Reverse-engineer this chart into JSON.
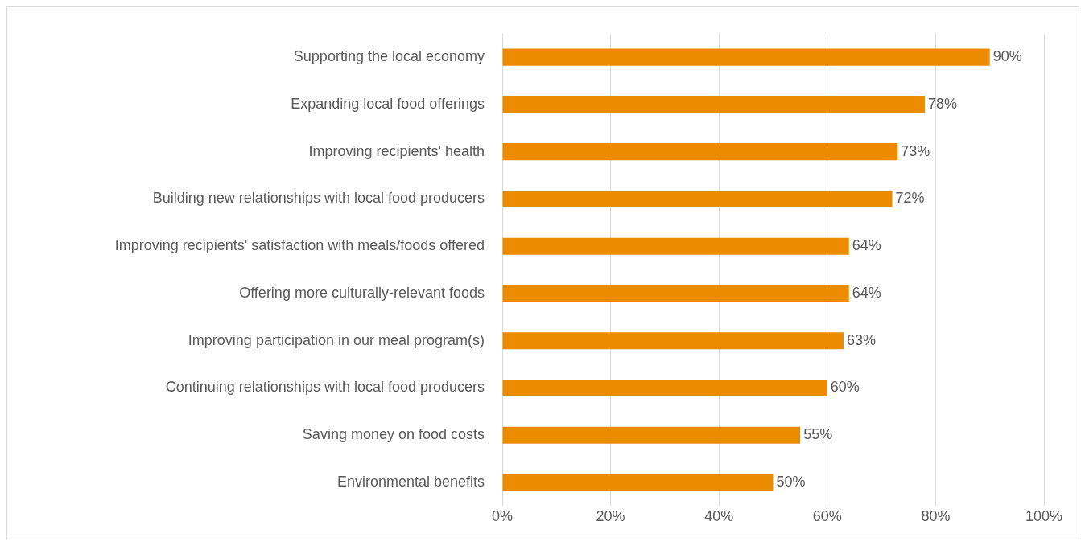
{
  "chart_data": {
    "type": "bar",
    "orientation": "horizontal",
    "categories": [
      "Supporting the local economy",
      "Expanding local food offerings",
      "Improving recipients' health",
      "Building new relationships with local food producers",
      "Improving recipients' satisfaction with meals/foods offered",
      "Offering more culturally-relevant foods",
      "Improving participation in our meal program(s)",
      "Continuing relationships with local food producers",
      "Saving money on food costs",
      "Environmental benefits"
    ],
    "values": [
      90,
      78,
      73,
      72,
      64,
      64,
      63,
      60,
      55,
      50
    ],
    "value_labels": [
      "90%",
      "78%",
      "73%",
      "72%",
      "64%",
      "64%",
      "63%",
      "60%",
      "55%",
      "50%"
    ],
    "color": "#ed8b00",
    "xlim": [
      0,
      100
    ],
    "xticks": [
      {
        "value": 0,
        "label": "0%"
      },
      {
        "value": 20,
        "label": "20%"
      },
      {
        "value": 40,
        "label": "40%"
      },
      {
        "value": 60,
        "label": "60%"
      },
      {
        "value": 80,
        "label": "80%"
      },
      {
        "value": 100,
        "label": "100%"
      }
    ],
    "grid": "x",
    "legend": false
  }
}
